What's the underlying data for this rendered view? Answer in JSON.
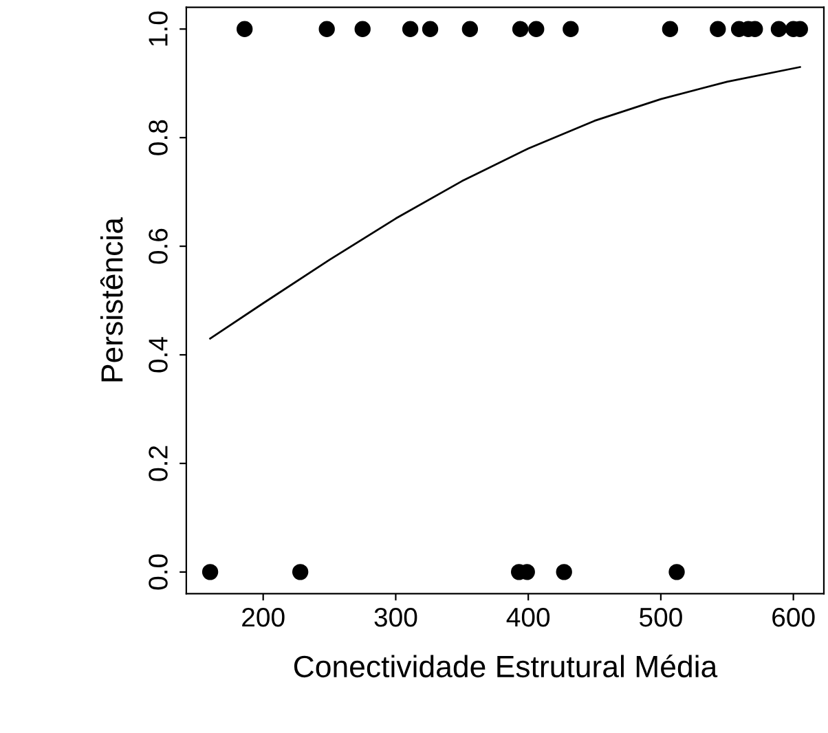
{
  "chart_data": {
    "type": "scatter",
    "xlabel": "Conectividade Estrutural Média",
    "ylabel": "Persistência",
    "series": [
      {
        "color": "#000000",
        "marker": "circle",
        "x": [
          186,
          248,
          275,
          311,
          326,
          356,
          394,
          406,
          432,
          507,
          543,
          559,
          566,
          571,
          589,
          600,
          605,
          160,
          228,
          393,
          399,
          427,
          512
        ],
        "values": [
          1,
          1,
          1,
          1,
          1,
          1,
          1,
          1,
          1,
          1,
          1,
          1,
          1,
          1,
          1,
          1,
          1,
          0,
          0,
          0,
          0,
          0,
          0
        ]
      },
      {
        "type": "line",
        "color": "#000000",
        "marker": "none",
        "line_style": "solid",
        "x": [
          160,
          200,
          250,
          300,
          350,
          400,
          450,
          500,
          550,
          605
        ],
        "values": [
          0.43,
          0.495,
          0.575,
          0.651,
          0.72,
          0.78,
          0.831,
          0.871,
          0.903,
          0.93
        ]
      }
    ],
    "xlim": [
      142,
      623
    ],
    "ylim": [
      -0.04,
      1.04
    ],
    "xticks": [
      200,
      300,
      400,
      500,
      600
    ],
    "yticks": [
      {
        "value": 0,
        "label": "0.0"
      },
      {
        "value": 0.2,
        "label": "0.2"
      },
      {
        "value": 0.4,
        "label": "0.4"
      },
      {
        "value": 0.6,
        "label": "0.6"
      },
      {
        "value": 0.8,
        "label": "0.8"
      },
      {
        "value": 1,
        "label": "1.0"
      }
    ],
    "grid": false,
    "legend": false
  }
}
